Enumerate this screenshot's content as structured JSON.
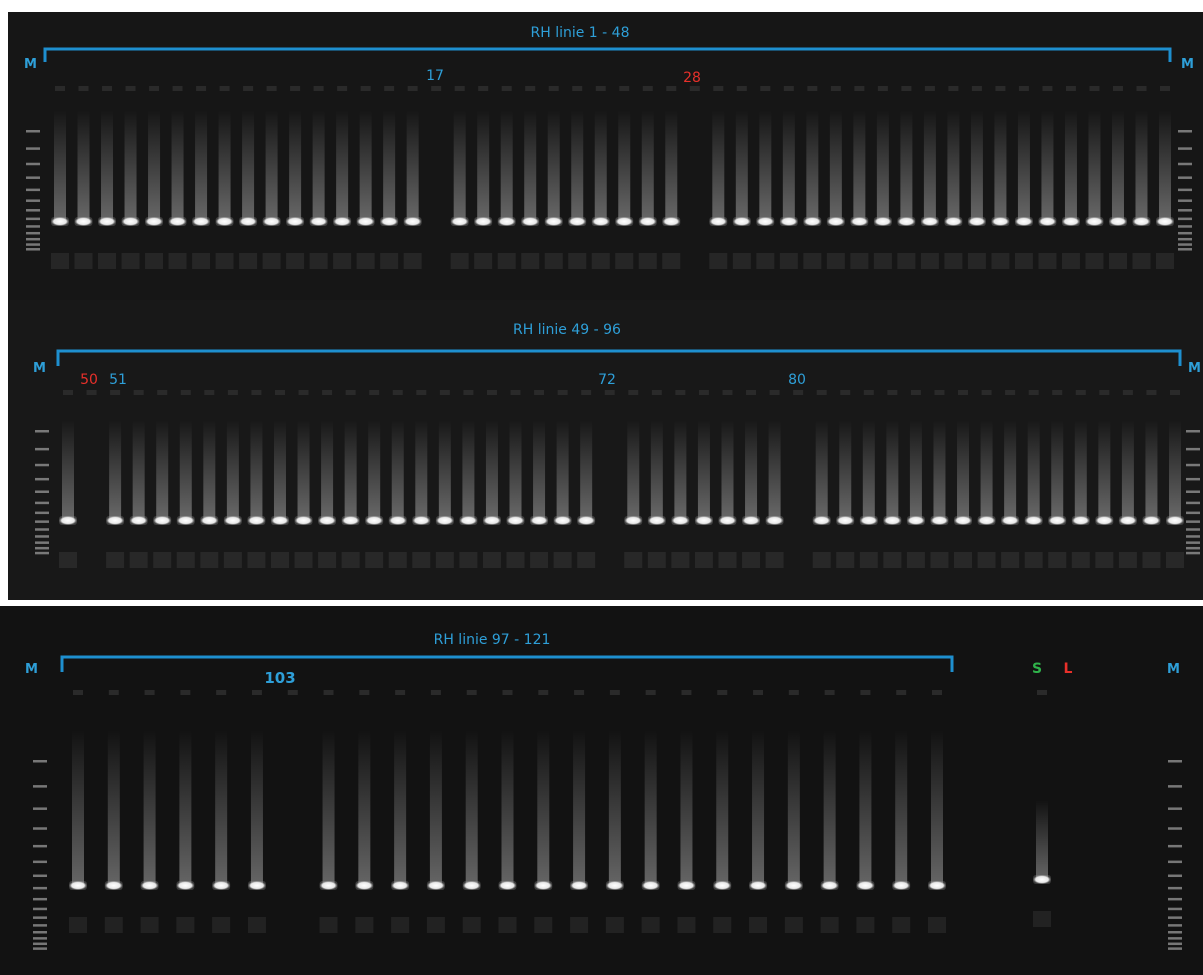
{
  "panels": [
    {
      "title": "RH linie 1 - 48",
      "marker_left": "M",
      "marker_right": "M",
      "lane_labels": [
        "17",
        "28"
      ]
    },
    {
      "title": "RH linie 49 - 96",
      "marker_left": "M",
      "marker_right": "M",
      "lane_labels": [
        "50",
        "51",
        "72",
        "80"
      ]
    },
    {
      "title": "RH linie 97 - 121",
      "marker_left": "M",
      "marker_right": "M",
      "lane_labels": [
        "103",
        "S",
        "L"
      ]
    }
  ]
}
